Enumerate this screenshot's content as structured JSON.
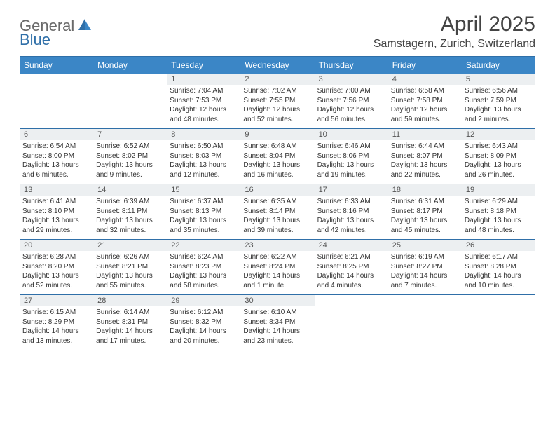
{
  "logo": {
    "general": "General",
    "blue": "Blue"
  },
  "header": {
    "month_title": "April 2025",
    "location": "Samstagern, Zurich, Switzerland"
  },
  "colors": {
    "header_bar": "#3b86c6",
    "rule": "#2f6fa8",
    "daynum_bg": "#eceff1",
    "text": "#333333",
    "title_text": "#444444"
  },
  "dow": [
    "Sunday",
    "Monday",
    "Tuesday",
    "Wednesday",
    "Thursday",
    "Friday",
    "Saturday"
  ],
  "weeks": [
    [
      {
        "n": "",
        "sr": "",
        "ss": "",
        "dl": ""
      },
      {
        "n": "",
        "sr": "",
        "ss": "",
        "dl": ""
      },
      {
        "n": "1",
        "sr": "Sunrise: 7:04 AM",
        "ss": "Sunset: 7:53 PM",
        "dl": "Daylight: 12 hours and 48 minutes."
      },
      {
        "n": "2",
        "sr": "Sunrise: 7:02 AM",
        "ss": "Sunset: 7:55 PM",
        "dl": "Daylight: 12 hours and 52 minutes."
      },
      {
        "n": "3",
        "sr": "Sunrise: 7:00 AM",
        "ss": "Sunset: 7:56 PM",
        "dl": "Daylight: 12 hours and 56 minutes."
      },
      {
        "n": "4",
        "sr": "Sunrise: 6:58 AM",
        "ss": "Sunset: 7:58 PM",
        "dl": "Daylight: 12 hours and 59 minutes."
      },
      {
        "n": "5",
        "sr": "Sunrise: 6:56 AM",
        "ss": "Sunset: 7:59 PM",
        "dl": "Daylight: 13 hours and 2 minutes."
      }
    ],
    [
      {
        "n": "6",
        "sr": "Sunrise: 6:54 AM",
        "ss": "Sunset: 8:00 PM",
        "dl": "Daylight: 13 hours and 6 minutes."
      },
      {
        "n": "7",
        "sr": "Sunrise: 6:52 AM",
        "ss": "Sunset: 8:02 PM",
        "dl": "Daylight: 13 hours and 9 minutes."
      },
      {
        "n": "8",
        "sr": "Sunrise: 6:50 AM",
        "ss": "Sunset: 8:03 PM",
        "dl": "Daylight: 13 hours and 12 minutes."
      },
      {
        "n": "9",
        "sr": "Sunrise: 6:48 AM",
        "ss": "Sunset: 8:04 PM",
        "dl": "Daylight: 13 hours and 16 minutes."
      },
      {
        "n": "10",
        "sr": "Sunrise: 6:46 AM",
        "ss": "Sunset: 8:06 PM",
        "dl": "Daylight: 13 hours and 19 minutes."
      },
      {
        "n": "11",
        "sr": "Sunrise: 6:44 AM",
        "ss": "Sunset: 8:07 PM",
        "dl": "Daylight: 13 hours and 22 minutes."
      },
      {
        "n": "12",
        "sr": "Sunrise: 6:43 AM",
        "ss": "Sunset: 8:09 PM",
        "dl": "Daylight: 13 hours and 26 minutes."
      }
    ],
    [
      {
        "n": "13",
        "sr": "Sunrise: 6:41 AM",
        "ss": "Sunset: 8:10 PM",
        "dl": "Daylight: 13 hours and 29 minutes."
      },
      {
        "n": "14",
        "sr": "Sunrise: 6:39 AM",
        "ss": "Sunset: 8:11 PM",
        "dl": "Daylight: 13 hours and 32 minutes."
      },
      {
        "n": "15",
        "sr": "Sunrise: 6:37 AM",
        "ss": "Sunset: 8:13 PM",
        "dl": "Daylight: 13 hours and 35 minutes."
      },
      {
        "n": "16",
        "sr": "Sunrise: 6:35 AM",
        "ss": "Sunset: 8:14 PM",
        "dl": "Daylight: 13 hours and 39 minutes."
      },
      {
        "n": "17",
        "sr": "Sunrise: 6:33 AM",
        "ss": "Sunset: 8:16 PM",
        "dl": "Daylight: 13 hours and 42 minutes."
      },
      {
        "n": "18",
        "sr": "Sunrise: 6:31 AM",
        "ss": "Sunset: 8:17 PM",
        "dl": "Daylight: 13 hours and 45 minutes."
      },
      {
        "n": "19",
        "sr": "Sunrise: 6:29 AM",
        "ss": "Sunset: 8:18 PM",
        "dl": "Daylight: 13 hours and 48 minutes."
      }
    ],
    [
      {
        "n": "20",
        "sr": "Sunrise: 6:28 AM",
        "ss": "Sunset: 8:20 PM",
        "dl": "Daylight: 13 hours and 52 minutes."
      },
      {
        "n": "21",
        "sr": "Sunrise: 6:26 AM",
        "ss": "Sunset: 8:21 PM",
        "dl": "Daylight: 13 hours and 55 minutes."
      },
      {
        "n": "22",
        "sr": "Sunrise: 6:24 AM",
        "ss": "Sunset: 8:23 PM",
        "dl": "Daylight: 13 hours and 58 minutes."
      },
      {
        "n": "23",
        "sr": "Sunrise: 6:22 AM",
        "ss": "Sunset: 8:24 PM",
        "dl": "Daylight: 14 hours and 1 minute."
      },
      {
        "n": "24",
        "sr": "Sunrise: 6:21 AM",
        "ss": "Sunset: 8:25 PM",
        "dl": "Daylight: 14 hours and 4 minutes."
      },
      {
        "n": "25",
        "sr": "Sunrise: 6:19 AM",
        "ss": "Sunset: 8:27 PM",
        "dl": "Daylight: 14 hours and 7 minutes."
      },
      {
        "n": "26",
        "sr": "Sunrise: 6:17 AM",
        "ss": "Sunset: 8:28 PM",
        "dl": "Daylight: 14 hours and 10 minutes."
      }
    ],
    [
      {
        "n": "27",
        "sr": "Sunrise: 6:15 AM",
        "ss": "Sunset: 8:29 PM",
        "dl": "Daylight: 14 hours and 13 minutes."
      },
      {
        "n": "28",
        "sr": "Sunrise: 6:14 AM",
        "ss": "Sunset: 8:31 PM",
        "dl": "Daylight: 14 hours and 17 minutes."
      },
      {
        "n": "29",
        "sr": "Sunrise: 6:12 AM",
        "ss": "Sunset: 8:32 PM",
        "dl": "Daylight: 14 hours and 20 minutes."
      },
      {
        "n": "30",
        "sr": "Sunrise: 6:10 AM",
        "ss": "Sunset: 8:34 PM",
        "dl": "Daylight: 14 hours and 23 minutes."
      },
      {
        "n": "",
        "sr": "",
        "ss": "",
        "dl": ""
      },
      {
        "n": "",
        "sr": "",
        "ss": "",
        "dl": ""
      },
      {
        "n": "",
        "sr": "",
        "ss": "",
        "dl": ""
      }
    ]
  ]
}
